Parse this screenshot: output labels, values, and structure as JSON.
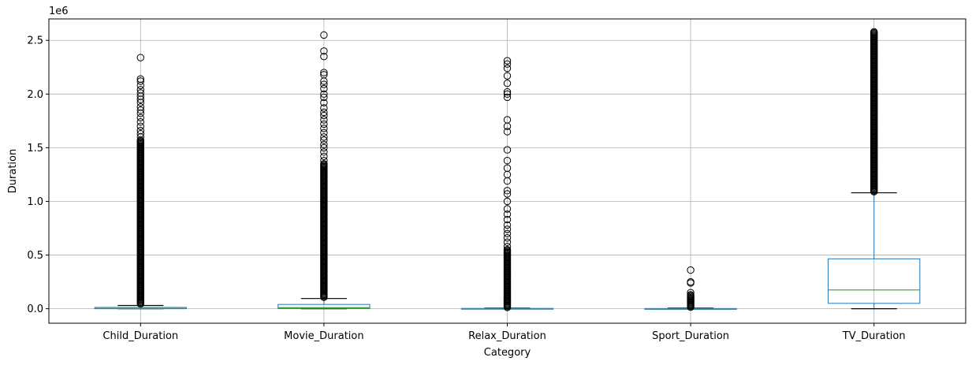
{
  "chart_data": {
    "type": "boxplot",
    "title": "",
    "xlabel": "Category",
    "ylabel": "Duration",
    "y_scale_label": "1e6",
    "ylim": [
      -0.135,
      2.7
    ],
    "yticks": [
      0.0,
      0.5,
      1.0,
      1.5,
      2.0,
      2.5
    ],
    "ytick_labels": [
      "0.0",
      "0.5",
      "1.0",
      "1.5",
      "2.0",
      "2.5"
    ],
    "grid": true,
    "colors": {
      "box": "#1f77b4",
      "median": "#2ca02c",
      "whisker": "#1f77b4",
      "cap": "#000000",
      "flier": "#000000",
      "grid": "#b0b0b0"
    },
    "categories": [
      "Child_Duration",
      "Movie_Duration",
      "Relax_Duration",
      "Sport_Duration",
      "TV_Duration"
    ],
    "boxes": [
      {
        "label": "Child_Duration",
        "whislo": 0.0,
        "q1": 0.0,
        "med": 0.002,
        "q3": 0.012,
        "whishi": 0.03,
        "fliers_dense": [
          0.04,
          1.57
        ],
        "fliers": [
          1.6,
          1.63,
          1.66,
          1.7,
          1.74,
          1.78,
          1.82,
          1.85,
          1.88,
          1.92,
          1.95,
          1.98,
          2.01,
          2.04,
          2.08,
          2.12,
          2.14,
          2.34
        ]
      },
      {
        "label": "Movie_Duration",
        "whislo": 0.0,
        "q1": 0.002,
        "med": 0.01,
        "q3": 0.04,
        "whishi": 0.095,
        "fliers_dense": [
          0.1,
          1.35
        ],
        "fliers": [
          1.38,
          1.42,
          1.46,
          1.5,
          1.53,
          1.57,
          1.6,
          1.64,
          1.68,
          1.72,
          1.76,
          1.8,
          1.83,
          1.87,
          1.92,
          1.97,
          2.0,
          2.05,
          2.09,
          2.12,
          2.18,
          2.2,
          2.35,
          2.4,
          2.55
        ]
      },
      {
        "label": "Relax_Duration",
        "whislo": 0.0,
        "q1": 0.0,
        "med": 0.0005,
        "q3": 0.003,
        "whishi": 0.006,
        "fliers_dense": [
          0.008,
          0.55
        ],
        "fliers": [
          0.58,
          0.62,
          0.66,
          0.7,
          0.74,
          0.78,
          0.83,
          0.88,
          0.93,
          1.0,
          1.07,
          1.1,
          1.19,
          1.25,
          1.31,
          1.38,
          1.48,
          1.65,
          1.7,
          1.76,
          1.97,
          2.0,
          2.02,
          2.1,
          2.17,
          2.24,
          2.28,
          2.31
        ]
      },
      {
        "label": "Sport_Duration",
        "whislo": 0.0,
        "q1": 0.0,
        "med": 0.0005,
        "q3": 0.002,
        "whishi": 0.006,
        "fliers_dense": [
          0.008,
          0.13
        ],
        "fliers": [
          0.15,
          0.25,
          0.24,
          0.36
        ]
      },
      {
        "label": "TV_Duration",
        "whislo": 0.0,
        "q1": 0.05,
        "med": 0.175,
        "q3": 0.465,
        "whishi": 1.08,
        "fliers_dense": [
          1.085,
          2.58
        ],
        "fliers": []
      }
    ]
  }
}
